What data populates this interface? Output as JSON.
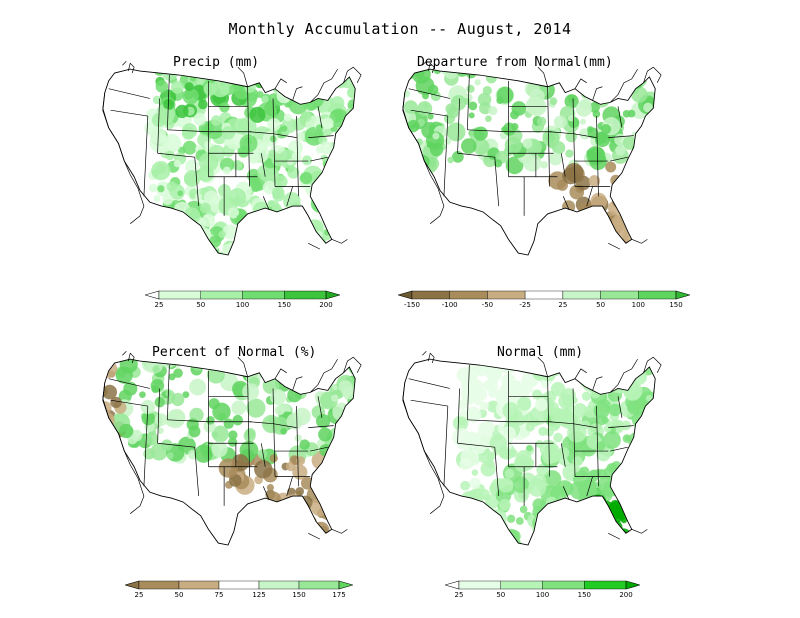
{
  "title": "Monthly Accumulation -- August, 2014",
  "panels": [
    {
      "id": "precip",
      "title": "Precip (mm)",
      "scheme": "green",
      "legend": {
        "ticks": [
          "25",
          "50",
          "100",
          "150",
          "200"
        ],
        "colors": [
          "#ffffff",
          "#d8fbd8",
          "#a8f0a8",
          "#70dd70",
          "#3cc43c",
          "#22aa22"
        ]
      }
    },
    {
      "id": "departure",
      "title": "Departure from Normal(mm)",
      "scheme": "diverging",
      "legend": {
        "ticks": [
          "-150",
          "-100",
          "-50",
          "-25",
          "25",
          "50",
          "100",
          "150"
        ],
        "colors": [
          "#6b5a32",
          "#8b7346",
          "#a88c5c",
          "#c9ad82",
          "#ffffff",
          "#c8f5c8",
          "#98e898",
          "#5fd45f",
          "#33b833"
        ]
      }
    },
    {
      "id": "percent",
      "title": "Percent of Normal (%)",
      "scheme": "diverging",
      "legend": {
        "ticks": [
          "25",
          "50",
          "75",
          "125",
          "150",
          "175"
        ],
        "colors": [
          "#8b7346",
          "#a88c5c",
          "#c9ad82",
          "#ffffff",
          "#c8f5c8",
          "#98e898",
          "#5fd45f"
        ]
      }
    },
    {
      "id": "normal",
      "title": "Normal (mm)",
      "scheme": "green",
      "legend": {
        "ticks": [
          "25",
          "50",
          "100",
          "150",
          "200"
        ],
        "colors": [
          "#ffffff",
          "#e6fde6",
          "#b6f3b6",
          "#7fe27f",
          "#22cc22",
          "#00aa00"
        ]
      }
    }
  ]
}
